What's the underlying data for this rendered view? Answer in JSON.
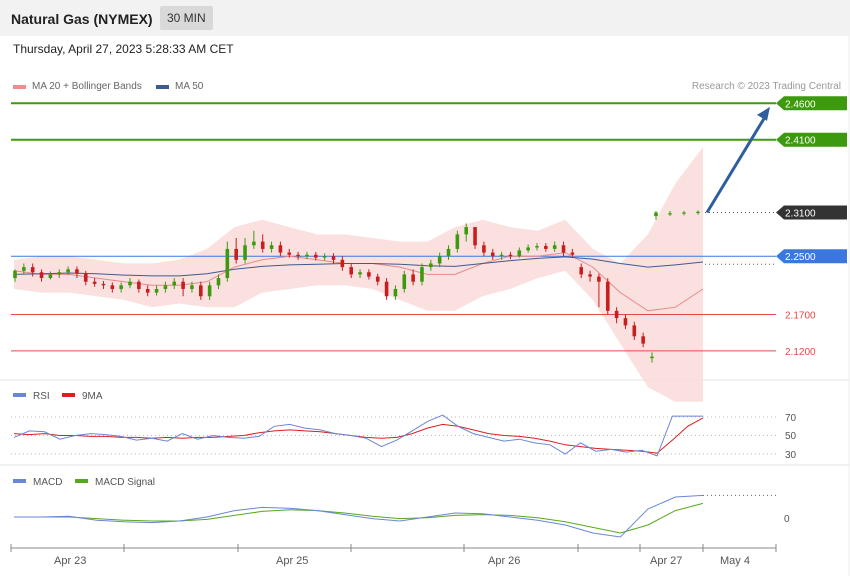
{
  "header": {
    "title": "Natural Gas (NYMEX)",
    "timeframe": "30 MIN",
    "date": "Thursday, April 27, 2023 5:28:33 AM CET"
  },
  "legend": {
    "ma20_label": "MA 20 + Bollinger Bands",
    "ma50_label": "MA 50",
    "credit": "Research © 2023 Trading Central"
  },
  "colors": {
    "resistance": "#3d9a0f",
    "support": "#e24a4a",
    "pivot": "#3a78e0",
    "current": "#333333",
    "bull": "#3d9a0f",
    "bear": "#c81e1e",
    "band": "#fadbdb",
    "ma20": "#e88a8a",
    "ma50": "#3c5a94",
    "arrow": "#2e5e9e",
    "rsi": "#6a86d8",
    "rsi_ma": "#dd1f1f",
    "macd": "#6a86d8",
    "macd_signal": "#56a81f"
  },
  "levels": [
    {
      "value": "2.4600",
      "type": "resistance"
    },
    {
      "value": "2.4100",
      "type": "resistance"
    },
    {
      "value": "2.3100",
      "type": "current"
    },
    {
      "value": "2.2500",
      "type": "pivot"
    },
    {
      "value": "2.1700",
      "type": "support"
    },
    {
      "value": "2.1200",
      "type": "support"
    }
  ],
  "rsi_panel": {
    "rsi_label": "RSI",
    "ma_label": "9MA",
    "ticks": [
      "70",
      "50",
      "30"
    ]
  },
  "macd_panel": {
    "macd_label": "MACD",
    "signal_label": "MACD Signal",
    "ticks": [
      "0"
    ]
  },
  "chart_data": {
    "type": "candlestick",
    "instrument": "Natural Gas (NYMEX)",
    "interval": "30 MIN",
    "x_labels": [
      "Apr 23",
      "Apr 25",
      "Apr 26",
      "Apr 27",
      "May 4"
    ],
    "price_range": [
      2.08,
      2.47
    ],
    "bollinger_upper": [
      2.245,
      2.25,
      2.25,
      2.245,
      2.24,
      2.24,
      2.245,
      2.26,
      2.29,
      2.3,
      2.29,
      2.28,
      2.28,
      2.275,
      2.27,
      2.27,
      2.29,
      2.3,
      2.29,
      2.285,
      2.3,
      2.26,
      2.24,
      2.28,
      2.35,
      2.4
    ],
    "bollinger_lower": [
      2.205,
      2.2,
      2.2,
      2.195,
      2.19,
      2.18,
      2.185,
      2.18,
      2.18,
      2.2,
      2.205,
      2.21,
      2.21,
      2.205,
      2.19,
      2.175,
      2.175,
      2.195,
      2.205,
      2.22,
      2.23,
      2.19,
      2.13,
      2.07,
      2.05,
      2.05
    ],
    "ma20": [
      2.23,
      2.225,
      2.225,
      2.22,
      2.215,
      2.21,
      2.21,
      2.215,
      2.235,
      2.245,
      2.25,
      2.245,
      2.24,
      2.24,
      2.235,
      2.225,
      2.225,
      2.24,
      2.25,
      2.25,
      2.255,
      2.235,
      2.2,
      2.175,
      2.18,
      2.205
    ],
    "ma50": [
      2.225,
      2.226,
      2.227,
      2.226,
      2.224,
      2.223,
      2.223,
      2.226,
      2.232,
      2.236,
      2.238,
      2.239,
      2.24,
      2.24,
      2.239,
      2.237,
      2.236,
      2.24,
      2.244,
      2.247,
      2.249,
      2.246,
      2.24,
      2.235,
      2.238,
      2.242
    ],
    "candles": [
      [
        2.22,
        2.23,
        2.215,
        2.232
      ],
      [
        2.23,
        2.235,
        2.225,
        2.24
      ],
      [
        2.235,
        2.228,
        2.222,
        2.24
      ],
      [
        2.228,
        2.22,
        2.215,
        2.232
      ],
      [
        2.22,
        2.225,
        2.218,
        2.229
      ],
      [
        2.225,
        2.228,
        2.22,
        2.232
      ],
      [
        2.228,
        2.232,
        2.224,
        2.236
      ],
      [
        2.232,
        2.226,
        2.22,
        2.236
      ],
      [
        2.226,
        2.215,
        2.21,
        2.23
      ],
      [
        2.215,
        2.212,
        2.208,
        2.22
      ],
      [
        2.212,
        2.21,
        2.205,
        2.216
      ],
      [
        2.21,
        2.205,
        2.2,
        2.214
      ],
      [
        2.205,
        2.21,
        2.2,
        2.214
      ],
      [
        2.21,
        2.215,
        2.206,
        2.22
      ],
      [
        2.215,
        2.205,
        2.2,
        2.218
      ],
      [
        2.205,
        2.2,
        2.195,
        2.21
      ],
      [
        2.2,
        2.205,
        2.196,
        2.21
      ],
      [
        2.205,
        2.21,
        2.2,
        2.215
      ],
      [
        2.21,
        2.215,
        2.205,
        2.22
      ],
      [
        2.215,
        2.205,
        2.195,
        2.22
      ],
      [
        2.205,
        2.21,
        2.2,
        2.215
      ],
      [
        2.21,
        2.195,
        2.19,
        2.215
      ],
      [
        2.195,
        2.21,
        2.19,
        2.215
      ],
      [
        2.21,
        2.22,
        2.205,
        2.225
      ],
      [
        2.22,
        2.26,
        2.215,
        2.27
      ],
      [
        2.26,
        2.245,
        2.24,
        2.275
      ],
      [
        2.245,
        2.265,
        2.24,
        2.275
      ],
      [
        2.265,
        2.27,
        2.26,
        2.285
      ],
      [
        2.27,
        2.26,
        2.255,
        2.28
      ],
      [
        2.26,
        2.265,
        2.255,
        2.27
      ],
      [
        2.265,
        2.255,
        2.25,
        2.27
      ],
      [
        2.255,
        2.252,
        2.248,
        2.26
      ],
      [
        2.252,
        2.25,
        2.245,
        2.256
      ],
      [
        2.25,
        2.252,
        2.246,
        2.256
      ],
      [
        2.252,
        2.248,
        2.244,
        2.256
      ],
      [
        2.248,
        2.25,
        2.244,
        2.254
      ],
      [
        2.25,
        2.245,
        2.24,
        2.254
      ],
      [
        2.245,
        2.235,
        2.23,
        2.25
      ],
      [
        2.235,
        2.225,
        2.22,
        2.24
      ],
      [
        2.225,
        2.228,
        2.22,
        2.232
      ],
      [
        2.228,
        2.222,
        2.218,
        2.232
      ],
      [
        2.222,
        2.215,
        2.21,
        2.226
      ],
      [
        2.215,
        2.195,
        2.19,
        2.22
      ],
      [
        2.195,
        2.205,
        2.19,
        2.21
      ],
      [
        2.205,
        2.225,
        2.2,
        2.23
      ],
      [
        2.225,
        2.215,
        2.21,
        2.232
      ],
      [
        2.215,
        2.235,
        2.21,
        2.24
      ],
      [
        2.235,
        2.24,
        2.23,
        2.245
      ],
      [
        2.24,
        2.25,
        2.235,
        2.255
      ],
      [
        2.25,
        2.26,
        2.245,
        2.265
      ],
      [
        2.26,
        2.28,
        2.255,
        2.285
      ],
      [
        2.28,
        2.29,
        2.27,
        2.295
      ],
      [
        2.29,
        2.265,
        2.26,
        2.29
      ],
      [
        2.265,
        2.255,
        2.25,
        2.27
      ],
      [
        2.255,
        2.25,
        2.245,
        2.26
      ],
      [
        2.25,
        2.252,
        2.245,
        2.256
      ],
      [
        2.252,
        2.25,
        2.246,
        2.256
      ],
      [
        2.25,
        2.258,
        2.248,
        2.262
      ],
      [
        2.258,
        2.262,
        2.255,
        2.266
      ],
      [
        2.262,
        2.264,
        2.258,
        2.268
      ],
      [
        2.264,
        2.26,
        2.256,
        2.268
      ],
      [
        2.26,
        2.265,
        2.256,
        2.27
      ],
      [
        2.265,
        2.255,
        2.25,
        2.27
      ],
      [
        2.255,
        2.252,
        2.248,
        2.26
      ],
      [
        2.235,
        2.225,
        2.22,
        2.24
      ],
      [
        2.225,
        2.222,
        2.215,
        2.23
      ],
      [
        2.222,
        2.215,
        2.18,
        2.226
      ],
      [
        2.215,
        2.175,
        2.17,
        2.22
      ],
      [
        2.175,
        2.165,
        2.158,
        2.18
      ],
      [
        2.165,
        2.155,
        2.15,
        2.17
      ],
      [
        2.155,
        2.14,
        2.135,
        2.16
      ],
      [
        2.14,
        2.13,
        2.125,
        2.145
      ],
      [
        2.11,
        2.112,
        2.104,
        2.118
      ],
      [
        2.305,
        2.31,
        2.3,
        2.312
      ],
      [
        2.308,
        2.309,
        2.305,
        2.312
      ],
      [
        2.309,
        2.31,
        2.306,
        2.312
      ],
      [
        2.31,
        2.311,
        2.307,
        2.313
      ]
    ],
    "rsi": [
      48,
      55,
      54,
      46,
      50,
      52,
      51,
      49,
      45,
      47,
      44,
      52,
      46,
      50,
      48,
      47,
      49,
      60,
      62,
      58,
      56,
      52,
      50,
      47,
      38,
      45,
      55,
      65,
      72,
      60,
      52,
      48,
      44,
      46,
      42,
      40,
      30,
      42,
      33,
      35,
      32,
      34,
      28,
      71,
      71,
      71
    ],
    "rsi_ma": [
      52,
      51,
      52,
      50,
      50,
      49,
      49,
      48,
      48,
      47,
      48,
      47,
      48,
      48,
      49,
      50,
      53,
      55,
      56,
      55,
      54,
      52,
      50,
      48,
      47,
      48,
      52,
      58,
      62,
      60,
      56,
      52,
      50,
      49,
      47,
      44,
      40,
      38,
      36,
      35,
      34,
      33,
      31,
      45,
      60,
      69
    ],
    "macd": [
      0.0,
      0.0,
      0.001,
      -0.004,
      -0.006,
      -0.007,
      -0.005,
      0.0,
      0.008,
      0.012,
      0.011,
      0.008,
      0.003,
      -0.002,
      -0.005,
      0.0,
      0.005,
      0.004,
      0.0,
      -0.004,
      -0.01,
      -0.02,
      -0.025,
      0.01,
      0.025,
      0.027
    ],
    "macd_signal": [
      0.0,
      0.0,
      0.0,
      -0.002,
      -0.004,
      -0.005,
      -0.005,
      -0.003,
      0.002,
      0.007,
      0.009,
      0.008,
      0.005,
      0.001,
      -0.002,
      -0.001,
      0.002,
      0.003,
      0.002,
      -0.001,
      -0.006,
      -0.013,
      -0.02,
      -0.01,
      0.008,
      0.017
    ]
  }
}
